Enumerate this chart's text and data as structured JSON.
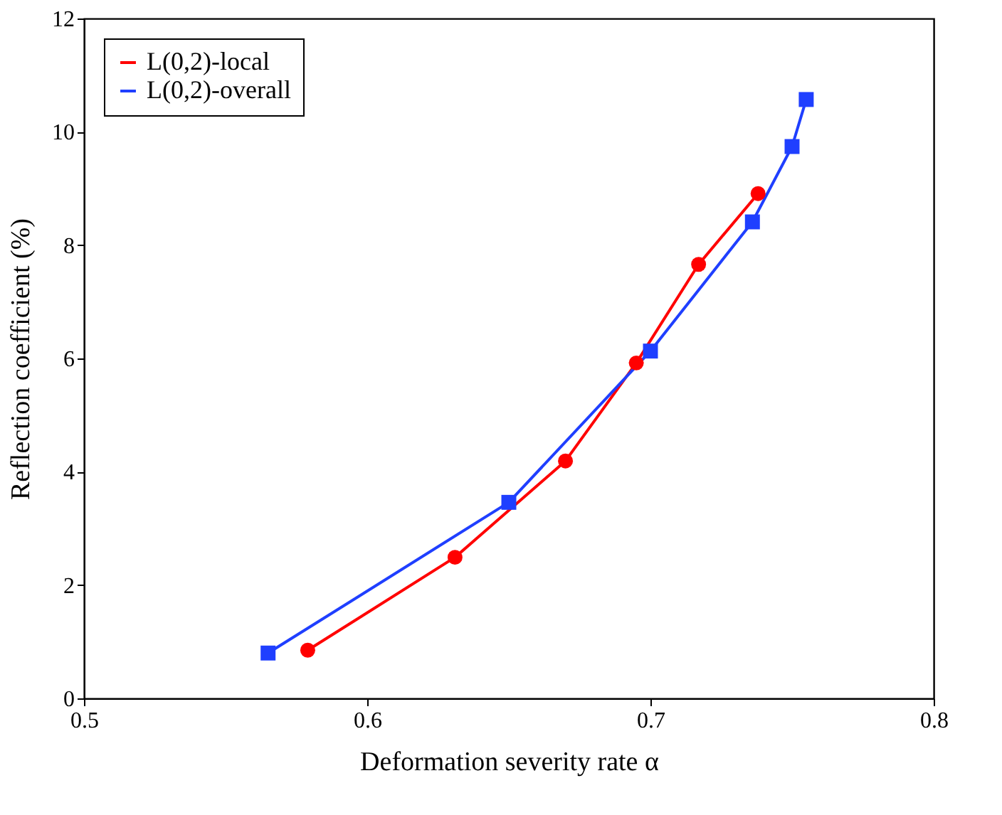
{
  "chart_data": {
    "type": "line",
    "xlabel": "Deformation severity rate α",
    "ylabel": "Reflection coefficient (%)",
    "xlim": [
      0.5,
      0.8
    ],
    "xticks": [
      0.5,
      0.6,
      0.7,
      0.8
    ],
    "ylim": [
      0,
      12
    ],
    "yticks": [
      0,
      2,
      4,
      6,
      8,
      10,
      12
    ],
    "grid": false,
    "legend": "top left",
    "line_style": "solid",
    "series": [
      {
        "name": "L(0,2)-local",
        "color": "#ff0000",
        "marker": "circle",
        "x": [
          0.579,
          0.631,
          0.67,
          0.695,
          0.717,
          0.738
        ],
        "values": [
          0.85,
          2.49,
          4.19,
          5.92,
          7.66,
          8.91
        ]
      },
      {
        "name": "L(0,2)-overall",
        "color": "#1f3fff",
        "marker": "square",
        "x": [
          0.565,
          0.65,
          0.7,
          0.736,
          0.75,
          0.755
        ],
        "values": [
          0.8,
          3.46,
          6.13,
          8.41,
          9.74,
          10.57
        ]
      }
    ]
  }
}
